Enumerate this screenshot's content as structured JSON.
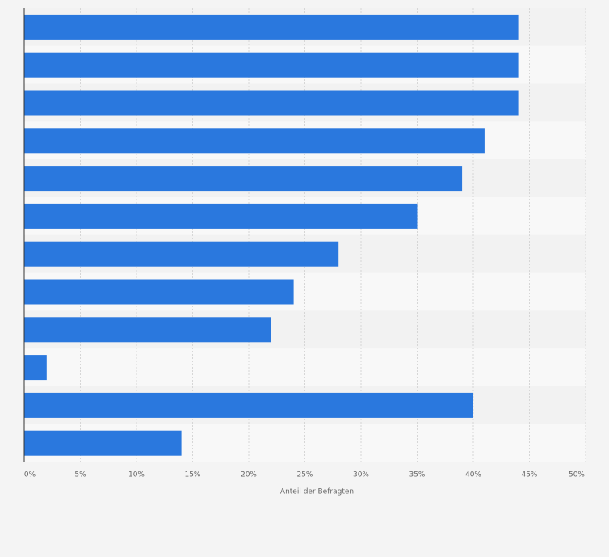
{
  "chart_data": {
    "type": "bar",
    "orientation": "horizontal",
    "title": "",
    "xlabel": "Anteil der Befragten",
    "ylabel": "",
    "xlim": [
      0,
      50
    ],
    "xticks": [
      0,
      5,
      10,
      15,
      20,
      25,
      30,
      35,
      40,
      45,
      50
    ],
    "tick_suffix": "%",
    "grid": true,
    "categories": [
      "",
      "",
      "",
      "",
      "",
      "",
      "",
      "",
      "",
      "",
      "",
      ""
    ],
    "values": [
      44,
      44,
      44,
      41,
      39,
      35,
      28,
      24,
      22,
      2,
      40,
      14
    ],
    "bar_color": "#2a78de",
    "band_colors": [
      "#f2f2f2",
      "#f8f8f8"
    ],
    "grid_color": "#d6d6d6",
    "axis_color": "#333333"
  }
}
